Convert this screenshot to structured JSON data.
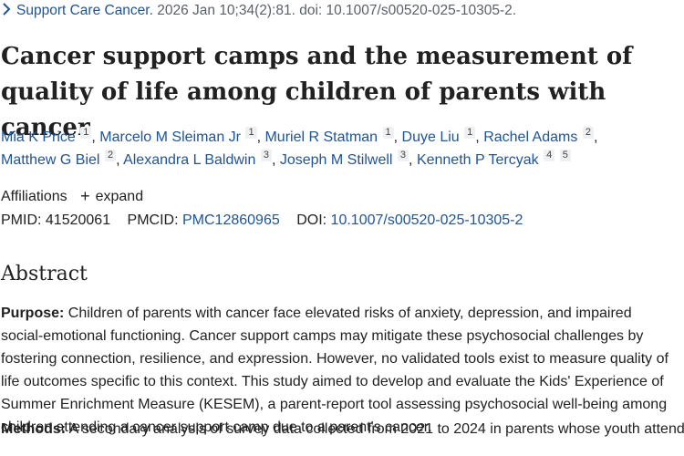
{
  "citation": {
    "journal": "Support Care Cancer.",
    "rest": " 2026 Jan 10;34(2):81. doi: 10.1007/s00520-025-10305-2."
  },
  "title": "Cancer support camps and the measurement of quality of life among children of parents with cancer",
  "authors": [
    {
      "name": "Mia K Price",
      "aff": "1"
    },
    {
      "name": "Marcelo M Sleiman Jr",
      "aff": "1"
    },
    {
      "name": "Muriel R Statman",
      "aff": "1"
    },
    {
      "name": "Duye Liu",
      "aff": "1"
    },
    {
      "name": "Rachel Adams",
      "aff": "2"
    },
    {
      "name": "Matthew G Biel",
      "aff": "2"
    },
    {
      "name": "Alexandra L Baldwin",
      "aff": "3"
    },
    {
      "name": "Joseph M Stilwell",
      "aff": "3"
    },
    {
      "name": "Kenneth P Tercyak",
      "aff": "4",
      "aff2": "5"
    }
  ],
  "affiliations": {
    "label": "Affiliations",
    "expand_label": "expand",
    "plus": "+"
  },
  "ids": {
    "pmid_label": "PMID:",
    "pmid": "41520061",
    "pmcid_label": "PMCID:",
    "pmcid": "PMC12860965",
    "doi_label": "DOI:",
    "doi": "10.1007/s00520-025-10305-2"
  },
  "abstract": {
    "heading": "Abstract",
    "purpose_label": "Purpose:",
    "purpose_text": " Children of parents with cancer face elevated risks of anxiety, depression, and impaired social-emotional functioning. Cancer support camps may mitigate these psychosocial challenges by fostering connection, resilience, and expression. However, no validated tools exist to measure quality of life outcomes specific to this context. This study aimed to develop and evaluate the Kids' Experience of Summer Enrichment Measure (KESEM), a parent-report tool assessing psychosocial well-being among children attending a cancer support camp due to a parent's cancer.",
    "methods_label": "Methods:",
    "methods_text": " A secondary analysis of survey data collected from 2021 to 2024 in parents whose youth attended..."
  }
}
